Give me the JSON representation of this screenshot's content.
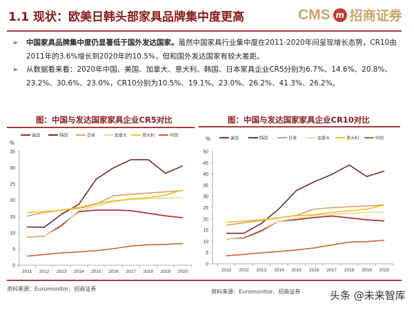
{
  "header": {
    "title": "1.1 现状：欧美日韩头部家具品牌集中度更高",
    "logo_text": "CMS",
    "logo_badge": "m",
    "logo_cn": "招商证券"
  },
  "bullets": [
    {
      "bold": "中国家具品牌集中度仍显著低于国外发达国家。",
      "text": "虽然中国家具行业集中度在2011-2020年间呈现增长态势，CR10由2011年的3.6%增长到2020年的10.5%，但和国外发达国家有较大差距。"
    },
    {
      "bold": "",
      "text": "从数据看来看：2020年中国、美国、加拿大、意大利、韩国、日本家具企业CR5分别为6.7%、14.6%、20.8%、23.2%、30.6%、23.0%，CR10分别为10.5%、19.1%、23.0%、26.2%、41.3%、26.2%。"
    }
  ],
  "bullet_marker": "➢",
  "colors": {
    "美国": "#a8242e",
    "韩国": "#6e2a2e",
    "日本": "#d4a06a",
    "加拿大": "#e2dc9c",
    "意大利": "#f2c21c",
    "中国": "#c8642e",
    "accent": "#8b1a1a"
  },
  "chart_data": [
    {
      "type": "line",
      "title": "图：中国与发达国家家具企业CR5对比",
      "ylabel": "%",
      "ylim": [
        0,
        35
      ],
      "yticks": [
        0,
        5,
        10,
        15,
        20,
        25,
        30,
        35
      ],
      "categories": [
        "2011",
        "2012",
        "2013",
        "2014",
        "2015",
        "2016",
        "2017",
        "2018",
        "2019",
        "2020"
      ],
      "legend_position": "top",
      "grid": false,
      "series": [
        {
          "name": "美国",
          "values": [
            8.7,
            8.9,
            12.3,
            16.5,
            17.0,
            17.0,
            16.8,
            16.0,
            15.2,
            14.6
          ]
        },
        {
          "name": "韩国",
          "values": [
            11.8,
            11.7,
            15.7,
            18.8,
            26.5,
            30.0,
            32.5,
            32.5,
            28.3,
            30.6
          ]
        },
        {
          "name": "日本",
          "values": [
            15.1,
            16.2,
            17.0,
            17.5,
            18.8,
            21.4,
            21.8,
            22.2,
            22.6,
            23.0
          ]
        },
        {
          "name": "加拿大",
          "values": [
            8.8,
            9.0,
            11.8,
            16.8,
            18.2,
            19.6,
            20.2,
            20.5,
            20.7,
            20.8
          ]
        },
        {
          "name": "意大利",
          "values": [
            16.2,
            16.5,
            17.0,
            17.8,
            19.0,
            19.8,
            20.4,
            20.8,
            21.6,
            23.2
          ]
        },
        {
          "name": "中国",
          "values": [
            2.8,
            3.3,
            3.8,
            4.1,
            4.5,
            5.1,
            5.9,
            6.3,
            6.4,
            6.7
          ]
        }
      ],
      "source": "资料来源：Euromonitor、招商证券"
    },
    {
      "type": "line",
      "title": "图：中国与发达国家家具企业CR10对比",
      "ylabel": "%",
      "ylim": [
        0,
        50
      ],
      "yticks": [
        0,
        5,
        10,
        15,
        20,
        25,
        30,
        35,
        40,
        45,
        50
      ],
      "categories": [
        "2011",
        "2012",
        "2013",
        "2014",
        "2015",
        "2016",
        "2017",
        "2018",
        "2019",
        "2020"
      ],
      "legend_position": "top",
      "grid": false,
      "series": [
        {
          "name": "美国",
          "values": [
            11.0,
            11.5,
            14.8,
            19.0,
            19.7,
            20.6,
            21.3,
            20.5,
            19.6,
            19.1
          ]
        },
        {
          "name": "韩国",
          "values": [
            13.6,
            13.6,
            18.0,
            24.5,
            32.7,
            36.5,
            39.8,
            44.0,
            38.9,
            41.3
          ]
        },
        {
          "name": "日本",
          "values": [
            17.2,
            18.3,
            19.3,
            20.5,
            21.6,
            24.4,
            25.0,
            25.4,
            25.8,
            26.2
          ]
        },
        {
          "name": "加拿大",
          "values": [
            11.0,
            11.2,
            14.2,
            19.0,
            20.3,
            21.5,
            22.0,
            22.4,
            22.9,
            23.0
          ]
        },
        {
          "name": "意大利",
          "values": [
            18.5,
            19.0,
            19.7,
            20.5,
            21.4,
            21.9,
            22.9,
            23.6,
            24.4,
            26.2
          ]
        },
        {
          "name": "中国",
          "values": [
            3.6,
            4.2,
            4.9,
            5.5,
            6.2,
            7.1,
            8.4,
            9.7,
            9.9,
            10.5
          ]
        }
      ],
      "source": "资料来源：Euromonitor、招商证券"
    }
  ],
  "watermark": "头条 @未来智库"
}
